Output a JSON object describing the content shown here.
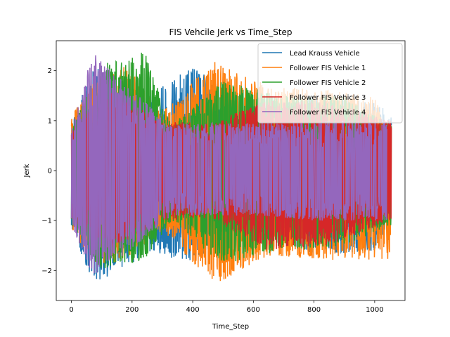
{
  "chart_data": {
    "type": "line",
    "title": "FIS Vehcile Jerk vs Time_Step",
    "xlabel": "Time_Step",
    "ylabel": "Jerk",
    "xlim": [
      -50,
      1100
    ],
    "ylim": [
      -2.6,
      2.6
    ],
    "x_ticks": [
      0,
      200,
      400,
      600,
      800,
      1000
    ],
    "y_ticks": [
      -2,
      -1,
      0,
      1,
      2
    ],
    "grid": false,
    "legend_position": "top-right",
    "x_range_observed": [
      0,
      1055
    ],
    "series": [
      {
        "name": "Lead Krauss Vehicle",
        "color": "#1f77b4",
        "envelope": [
          {
            "x": 0,
            "min": -1.2,
            "max": 0.9
          },
          {
            "x": 75,
            "min": -2.3,
            "max": 2.2
          },
          {
            "x": 150,
            "min": -2.0,
            "max": 1.6
          },
          {
            "x": 250,
            "min": -1.7,
            "max": 1.5
          },
          {
            "x": 400,
            "min": -1.8,
            "max": 2.1
          },
          {
            "x": 600,
            "min": -1.2,
            "max": 1.3
          },
          {
            "x": 800,
            "min": -1.7,
            "max": 1.5
          },
          {
            "x": 1000,
            "min": -1.6,
            "max": 1.4
          },
          {
            "x": 1055,
            "min": -1.0,
            "max": 1.1
          }
        ]
      },
      {
        "name": "Follower FIS Vehicle 1",
        "color": "#ff7f0e",
        "envelope": [
          {
            "x": 0,
            "min": -1.2,
            "max": 1.1
          },
          {
            "x": 75,
            "min": -1.9,
            "max": 1.8
          },
          {
            "x": 180,
            "min": -1.8,
            "max": 2.1
          },
          {
            "x": 300,
            "min": -1.2,
            "max": 1.2
          },
          {
            "x": 470,
            "min": -2.3,
            "max": 2.2
          },
          {
            "x": 650,
            "min": -1.7,
            "max": 1.7
          },
          {
            "x": 850,
            "min": -1.8,
            "max": 1.6
          },
          {
            "x": 1000,
            "min": -1.8,
            "max": 1.5
          },
          {
            "x": 1055,
            "min": -1.9,
            "max": 0.5
          }
        ]
      },
      {
        "name": "Follower FIS Vehicle 2",
        "color": "#2ca02c",
        "envelope": [
          {
            "x": 0,
            "min": -1.1,
            "max": 0.8
          },
          {
            "x": 90,
            "min": -2.0,
            "max": 2.1
          },
          {
            "x": 240,
            "min": -1.8,
            "max": 2.4
          },
          {
            "x": 330,
            "min": -1.0,
            "max": 0.9
          },
          {
            "x": 500,
            "min": -1.9,
            "max": 1.8
          },
          {
            "x": 700,
            "min": -1.6,
            "max": 1.5
          },
          {
            "x": 900,
            "min": -1.5,
            "max": 1.5
          },
          {
            "x": 1055,
            "min": -1.1,
            "max": 0.9
          }
        ]
      },
      {
        "name": "Follower FIS Vehicle 3",
        "color": "#d62728",
        "envelope": [
          {
            "x": 0,
            "min": -1.0,
            "max": 0.9
          },
          {
            "x": 120,
            "min": -1.6,
            "max": 1.6
          },
          {
            "x": 300,
            "min": -1.0,
            "max": 1.0
          },
          {
            "x": 460,
            "min": -0.95,
            "max": 0.95
          },
          {
            "x": 640,
            "min": -1.6,
            "max": 1.4
          },
          {
            "x": 850,
            "min": -1.5,
            "max": 1.4
          },
          {
            "x": 1055,
            "min": -1.0,
            "max": 1.0
          }
        ]
      },
      {
        "name": "Follower FIS Vehicle 4",
        "color": "#9467bd",
        "envelope": [
          {
            "x": 0,
            "min": -1.1,
            "max": 0.8
          },
          {
            "x": 70,
            "min": -2.1,
            "max": 2.4
          },
          {
            "x": 200,
            "min": -1.6,
            "max": 1.6
          },
          {
            "x": 330,
            "min": -0.9,
            "max": 0.95
          },
          {
            "x": 500,
            "min": -0.9,
            "max": 0.95
          },
          {
            "x": 600,
            "min": -0.9,
            "max": 0.95
          },
          {
            "x": 800,
            "min": -1.0,
            "max": 1.0
          },
          {
            "x": 1040,
            "min": -1.0,
            "max": 1.0
          }
        ]
      }
    ]
  }
}
